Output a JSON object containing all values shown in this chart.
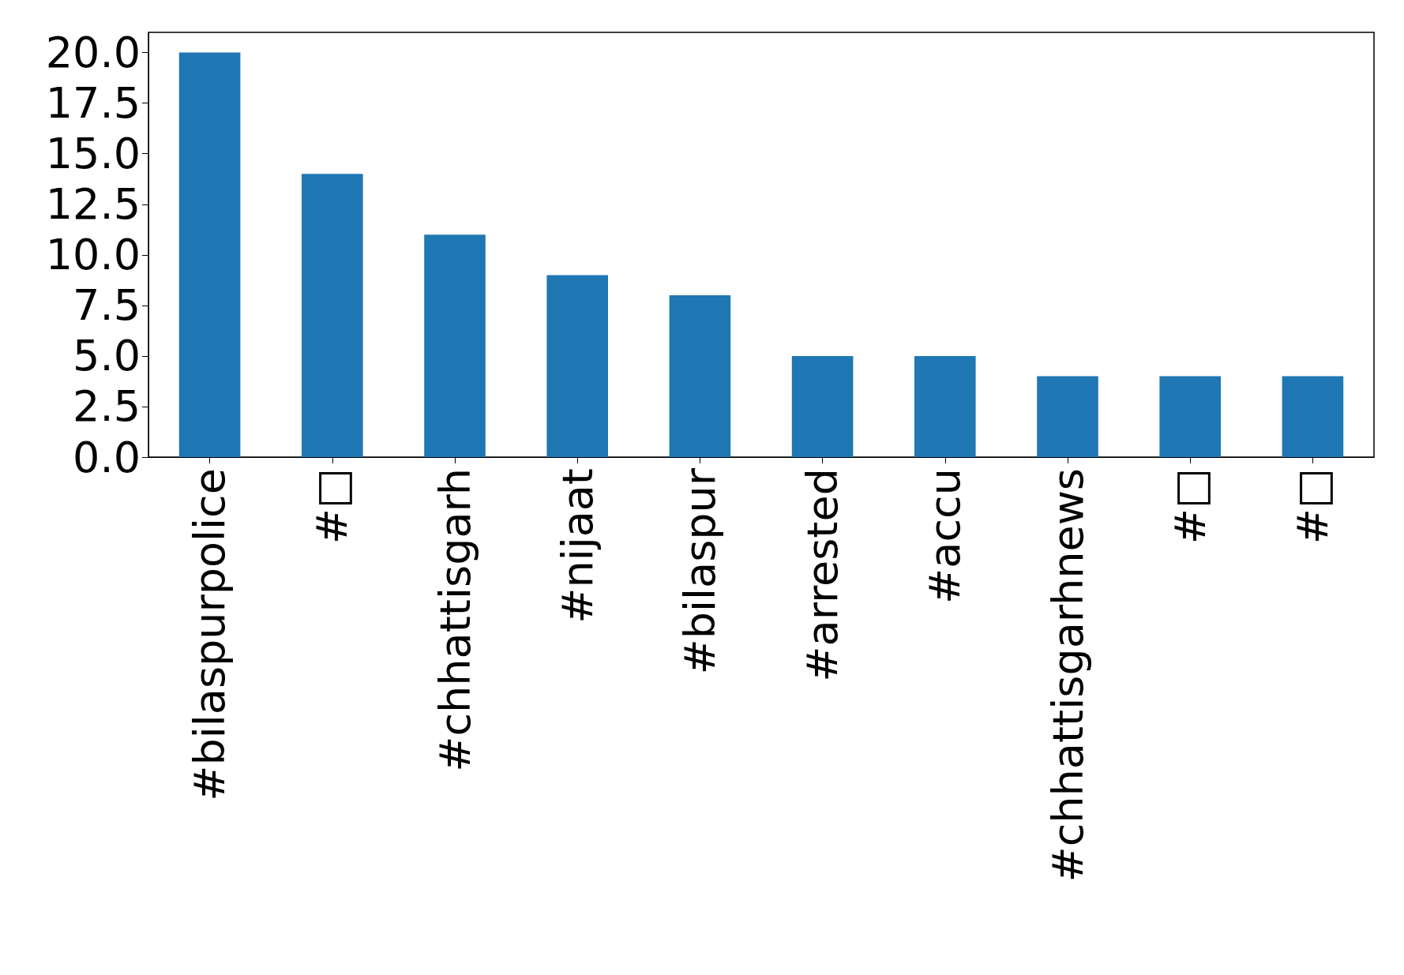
{
  "chart_data": {
    "type": "bar",
    "categories": [
      "#bilaspurpolice",
      "#□",
      "#chhattisgarh",
      "#nijaat",
      "#bilaspur",
      "#arrested",
      "#accu",
      "#chhattisgarhnews",
      "#□",
      "#□"
    ],
    "values": [
      20,
      14,
      11,
      9,
      8,
      5,
      5,
      4,
      4,
      4
    ],
    "color": "#1f77b4",
    "ylim": [
      0,
      21
    ],
    "yticks": [
      {
        "value": 0,
        "label": "0.0"
      },
      {
        "value": 2.5,
        "label": "2.5"
      },
      {
        "value": 5,
        "label": "5.0"
      },
      {
        "value": 7.5,
        "label": "7.5"
      },
      {
        "value": 10,
        "label": "10.0"
      },
      {
        "value": 12.5,
        "label": "12.5"
      },
      {
        "value": 15,
        "label": "15.0"
      },
      {
        "value": 17.5,
        "label": "17.5"
      },
      {
        "value": 20,
        "label": "20.0"
      }
    ],
    "grid": false
  }
}
